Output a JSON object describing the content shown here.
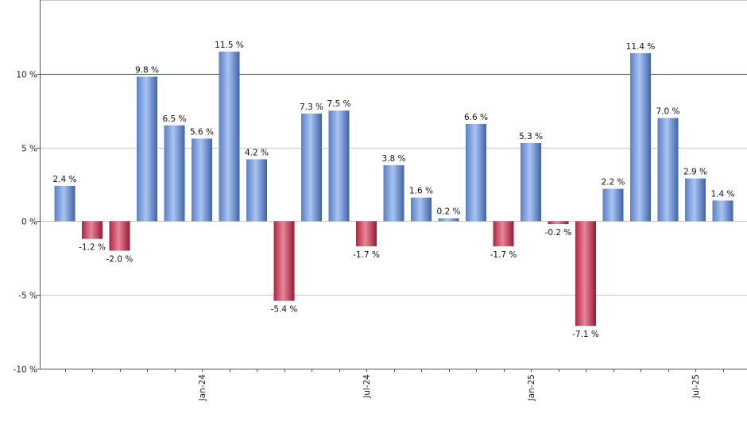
{
  "chart_data": {
    "type": "bar",
    "title": "",
    "xlabel": "",
    "ylabel": "",
    "ylim": [
      -10,
      15
    ],
    "grid": true,
    "legend": "none",
    "reference_line": {
      "value": 10,
      "color": "#1a6b1a"
    },
    "y_ticks": [
      {
        "value": 10,
        "label": "10 %"
      },
      {
        "value": 5,
        "label": "5 %"
      },
      {
        "value": 0,
        "label": "0 %"
      },
      {
        "value": -5,
        "label": "-5 %"
      },
      {
        "value": -10,
        "label": "-10 %"
      }
    ],
    "x_ticks": [
      {
        "index": 5,
        "label": "Jan-24"
      },
      {
        "index": 11,
        "label": "Jul-24"
      },
      {
        "index": 17,
        "label": "Jan-25"
      },
      {
        "index": 23,
        "label": "Jul-25"
      }
    ],
    "values": [
      2.4,
      -1.2,
      -2.0,
      9.8,
      6.5,
      5.6,
      11.5,
      4.2,
      -5.4,
      7.3,
      7.5,
      -1.7,
      3.8,
      1.6,
      0.2,
      6.6,
      -1.7,
      5.3,
      -0.2,
      -7.1,
      2.2,
      11.4,
      7.0,
      2.9,
      1.4
    ],
    "data_labels": [
      "2.4 %",
      "-1.2 %",
      "-2.0 %",
      "9.8 %",
      "6.5 %",
      "5.6 %",
      "11.5 %",
      "4.2 %",
      "-5.4 %",
      "7.3 %",
      "7.5 %",
      "-1.7 %",
      "3.8 %",
      "1.6 %",
      "0.2 %",
      "6.6 %",
      "-1.7 %",
      "5.3 %",
      "-0.2 %",
      "-7.1 %",
      "2.2 %",
      "11.4 %",
      "7.0 %",
      "2.9 %",
      "1.4 %"
    ],
    "colors": {
      "positive": "#6f95d8",
      "negative": "#c8324f",
      "grid": "#c8c8c8",
      "axis": "#555555"
    }
  }
}
